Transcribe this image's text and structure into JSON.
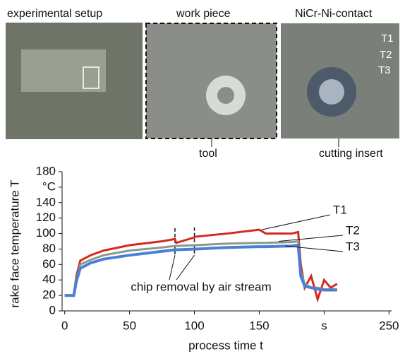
{
  "photos": {
    "captions": [
      "experimental setup",
      "work piece",
      "NiCr-Ni-contact",
      "tool",
      "cutting insert"
    ],
    "sensor_labels": [
      "T1",
      "T2",
      "T3"
    ]
  },
  "chart_data": {
    "type": "line",
    "ylabel": "rake face temperature T",
    "xlabel": "process time t",
    "annotation": "chip removal by air stream",
    "x": [
      0,
      7,
      9,
      12,
      20,
      30,
      50,
      75,
      85,
      86,
      100,
      101,
      125,
      150,
      155,
      175,
      180,
      182,
      185,
      190,
      195,
      200,
      205,
      210
    ],
    "series": [
      {
        "name": "T1",
        "color": "#d42a1e",
        "values": [
          20,
          20,
          45,
          65,
          72,
          78,
          85,
          90,
          93,
          88,
          95,
          96,
          100,
          105,
          100,
          100,
          102,
          60,
          30,
          45,
          15,
          40,
          30,
          35
        ]
      },
      {
        "name": "T2",
        "color": "#8a9a8a",
        "values": [
          20,
          20,
          40,
          60,
          66,
          72,
          78,
          82,
          84,
          84,
          85,
          85,
          87,
          88,
          88,
          89,
          90,
          50,
          35,
          30,
          30,
          28,
          28,
          28
        ]
      },
      {
        "name": "T3",
        "color": "#4a7fd8",
        "values": [
          20,
          20,
          38,
          55,
          62,
          67,
          72,
          77,
          79,
          79,
          80,
          80,
          82,
          83,
          83,
          84,
          85,
          45,
          32,
          30,
          28,
          27,
          27,
          27
        ]
      }
    ],
    "xlim": [
      -2,
      252
    ],
    "ylim": [
      0,
      180
    ],
    "xticks": [
      0,
      50,
      100,
      150,
      {
        "value": 200,
        "label": "s"
      },
      250
    ],
    "yticks": [
      0,
      20,
      40,
      60,
      80,
      100,
      120,
      140,
      {
        "value": 160,
        "label": "°C"
      },
      180
    ]
  }
}
